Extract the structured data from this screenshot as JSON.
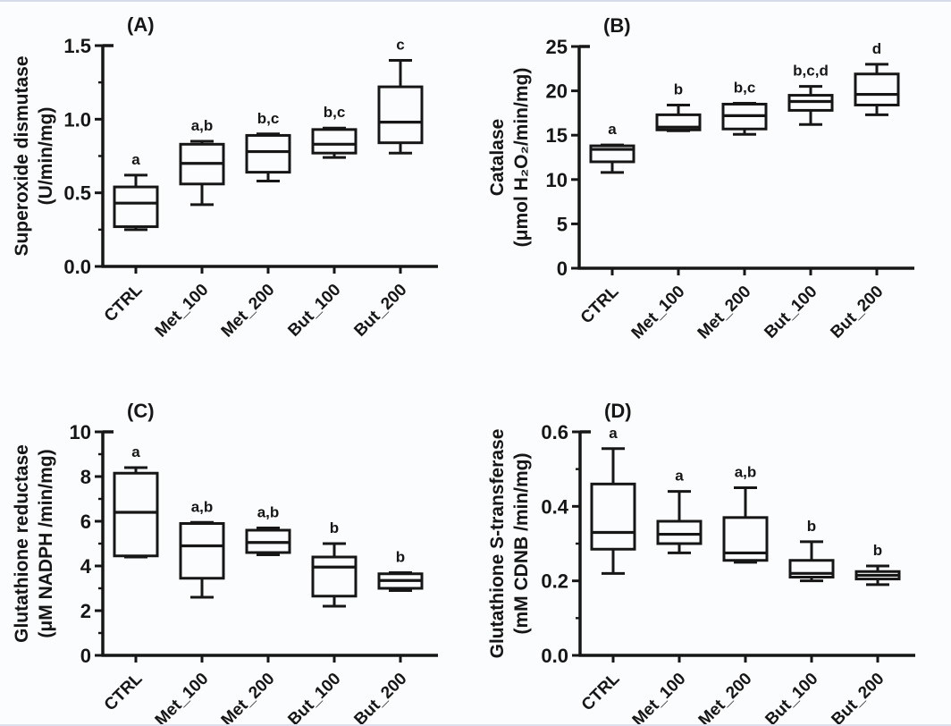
{
  "figure": {
    "kind": "2x2 box plot figure",
    "ink_color": "#161616",
    "background": "#fbfcfe",
    "panel_labels": [
      "(A)",
      "(B)",
      "(C)",
      "(D)"
    ]
  },
  "chart_data": [
    {
      "id": "A",
      "type": "box",
      "panel_label": "(A)",
      "ylabel_lines": [
        "Superoxide dismutase",
        "(U/min/mg)"
      ],
      "ylim": [
        0,
        1.5
      ],
      "ymajor": [
        0,
        0.5,
        1.0,
        1.5
      ],
      "ytick_labels": [
        "0.0",
        "0.5",
        "1.0",
        "1.5"
      ],
      "yminor": [
        0.25,
        0.75,
        1.25
      ],
      "grid": false,
      "categories": [
        "CTRL",
        "Met_100",
        "Met_200",
        "But_100",
        "But_200"
      ],
      "series": [
        {
          "group": "CTRL",
          "whisker_low": 0.25,
          "q1": 0.27,
          "median": 0.43,
          "q3": 0.54,
          "whisker_high": 0.62,
          "sig": "a"
        },
        {
          "group": "Met_100",
          "whisker_low": 0.42,
          "q1": 0.56,
          "median": 0.7,
          "q3": 0.83,
          "whisker_high": 0.85,
          "sig": "a,b"
        },
        {
          "group": "Met_200",
          "whisker_low": 0.58,
          "q1": 0.64,
          "median": 0.78,
          "q3": 0.89,
          "whisker_high": 0.9,
          "sig": "b,c"
        },
        {
          "group": "But_100",
          "whisker_low": 0.74,
          "q1": 0.77,
          "median": 0.83,
          "q3": 0.93,
          "whisker_high": 0.94,
          "sig": "b,c"
        },
        {
          "group": "But_200",
          "whisker_low": 0.77,
          "q1": 0.84,
          "median": 0.98,
          "q3": 1.22,
          "whisker_high": 1.4,
          "sig": "c"
        }
      ]
    },
    {
      "id": "B",
      "type": "box",
      "panel_label": "(B)",
      "ylabel_lines": [
        "Catalase",
        "(μmol H₂O₂/min/mg)"
      ],
      "ylim": [
        0,
        25
      ],
      "ymajor": [
        0,
        5,
        10,
        15,
        20,
        25
      ],
      "ytick_labels": [
        "0",
        "5",
        "10",
        "15",
        "20",
        "25"
      ],
      "yminor": [],
      "grid": false,
      "categories": [
        "CTRL",
        "Met_100",
        "Met_200",
        "But_100",
        "But_200"
      ],
      "series": [
        {
          "group": "CTRL",
          "whisker_low": 10.8,
          "q1": 12.0,
          "median": 13.4,
          "q3": 13.8,
          "whisker_high": 13.9,
          "sig": "a"
        },
        {
          "group": "Met_100",
          "whisker_low": 15.5,
          "q1": 15.6,
          "median": 15.9,
          "q3": 17.3,
          "whisker_high": 18.4,
          "sig": "b"
        },
        {
          "group": "Met_200",
          "whisker_low": 15.1,
          "q1": 15.7,
          "median": 17.2,
          "q3": 18.5,
          "whisker_high": 18.6,
          "sig": "b,c"
        },
        {
          "group": "But_100",
          "whisker_low": 16.2,
          "q1": 17.8,
          "median": 18.8,
          "q3": 19.5,
          "whisker_high": 20.5,
          "sig": "b,c,d"
        },
        {
          "group": "But_200",
          "whisker_low": 17.3,
          "q1": 18.4,
          "median": 19.6,
          "q3": 21.9,
          "whisker_high": 23.0,
          "sig": "d"
        }
      ]
    },
    {
      "id": "C",
      "type": "box",
      "panel_label": "(C)",
      "ylabel_lines": [
        "Glutathione reductase",
        "(μM NADPH /min/mg)"
      ],
      "ylim": [
        0,
        10
      ],
      "ymajor": [
        0,
        2,
        4,
        6,
        8,
        10
      ],
      "ytick_labels": [
        "0",
        "2",
        "4",
        "6",
        "8",
        "10"
      ],
      "yminor": [
        1,
        3,
        5,
        7,
        9
      ],
      "grid": false,
      "categories": [
        "CTRL",
        "Met_100",
        "Met_200",
        "But_100",
        "But_200"
      ],
      "series": [
        {
          "group": "CTRL",
          "whisker_low": 4.4,
          "q1": 4.45,
          "median": 6.4,
          "q3": 8.15,
          "whisker_high": 8.4,
          "sig": "a"
        },
        {
          "group": "Met_100",
          "whisker_low": 2.6,
          "q1": 3.45,
          "median": 4.9,
          "q3": 5.9,
          "whisker_high": 5.95,
          "sig": "a,b"
        },
        {
          "group": "Met_200",
          "whisker_low": 4.5,
          "q1": 4.6,
          "median": 5.05,
          "q3": 5.6,
          "whisker_high": 5.7,
          "sig": "a,b"
        },
        {
          "group": "But_100",
          "whisker_low": 2.2,
          "q1": 2.65,
          "median": 3.95,
          "q3": 4.4,
          "whisker_high": 5.0,
          "sig": "b"
        },
        {
          "group": "But_200",
          "whisker_low": 2.9,
          "q1": 3.0,
          "median": 3.35,
          "q3": 3.65,
          "whisker_high": 3.7,
          "sig": "b"
        }
      ]
    },
    {
      "id": "D",
      "type": "box",
      "panel_label": "(D)",
      "ylabel_lines": [
        "Glutathione S-transferase",
        "(mM CDNB /min/mg)"
      ],
      "ylim": [
        0,
        0.6
      ],
      "ymajor": [
        0,
        0.2,
        0.4,
        0.6
      ],
      "ytick_labels": [
        "0.0",
        "0.2",
        "0.4",
        "0.6"
      ],
      "yminor": [
        0.1,
        0.3,
        0.5
      ],
      "grid": false,
      "categories": [
        "CTRL",
        "Met_100",
        "Met_200",
        "But_100",
        "But_200"
      ],
      "series": [
        {
          "group": "CTRL",
          "whisker_low": 0.22,
          "q1": 0.285,
          "median": 0.33,
          "q3": 0.46,
          "whisker_high": 0.555,
          "sig": "a"
        },
        {
          "group": "Met_100",
          "whisker_low": 0.275,
          "q1": 0.3,
          "median": 0.325,
          "q3": 0.36,
          "whisker_high": 0.44,
          "sig": "a"
        },
        {
          "group": "Met_200",
          "whisker_low": 0.25,
          "q1": 0.255,
          "median": 0.275,
          "q3": 0.37,
          "whisker_high": 0.45,
          "sig": "a,b"
        },
        {
          "group": "But_100",
          "whisker_low": 0.2,
          "q1": 0.21,
          "median": 0.22,
          "q3": 0.255,
          "whisker_high": 0.305,
          "sig": "b"
        },
        {
          "group": "But_200",
          "whisker_low": 0.19,
          "q1": 0.205,
          "median": 0.215,
          "q3": 0.225,
          "whisker_high": 0.24,
          "sig": "b"
        }
      ]
    }
  ]
}
